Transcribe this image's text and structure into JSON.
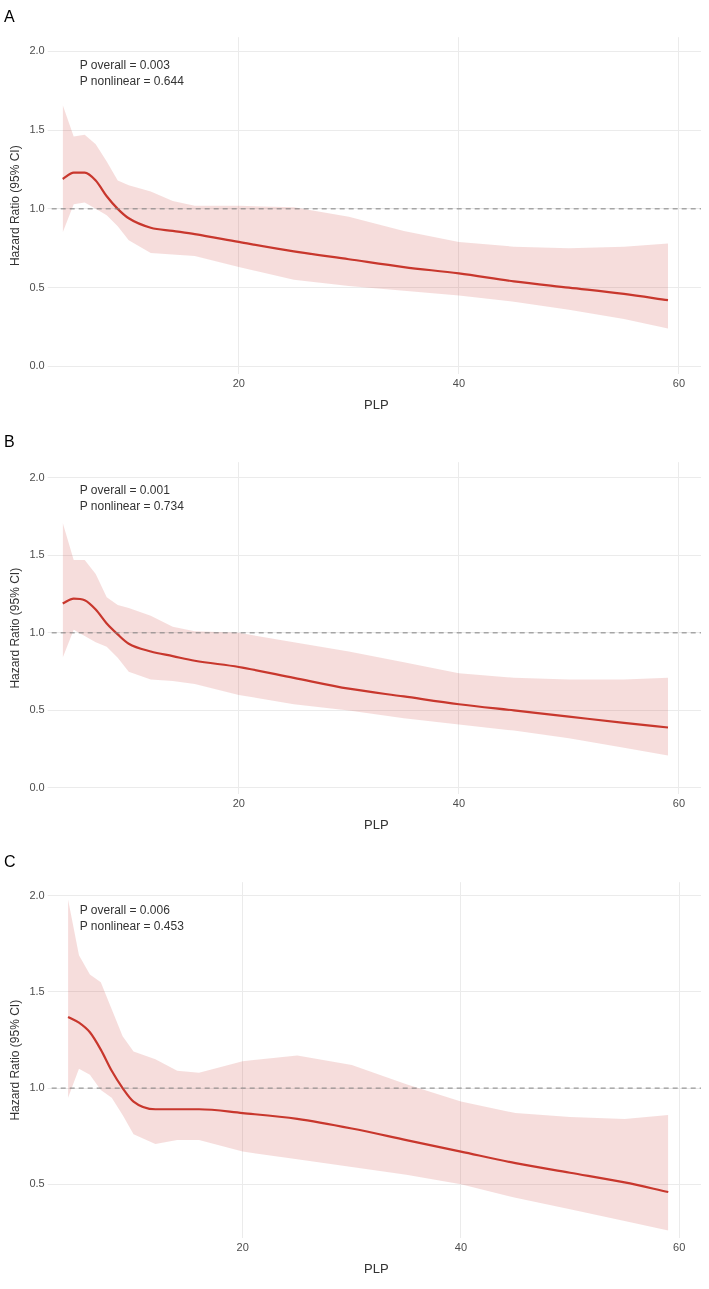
{
  "chart_data": [
    {
      "type": "line",
      "title": "A",
      "xlabel": "PLP",
      "ylabel": "Hazard Ratio (95% CI)",
      "x": [
        4,
        5,
        6,
        7,
        8,
        9,
        10,
        12,
        14,
        16,
        20,
        25,
        30,
        35,
        40,
        45,
        50,
        55,
        59
      ],
      "series": [
        {
          "color": "#c8372d",
          "values": [
            1.19,
            1.23,
            1.23,
            1.18,
            1.08,
            1.0,
            0.94,
            0.88,
            0.86,
            0.84,
            0.79,
            0.73,
            0.68,
            0.63,
            0.59,
            0.54,
            0.5,
            0.46,
            0.42
          ],
          "lower": [
            0.85,
            1.03,
            1.04,
            1.0,
            0.96,
            0.89,
            0.8,
            0.72,
            0.71,
            0.7,
            0.63,
            0.55,
            0.51,
            0.48,
            0.45,
            0.41,
            0.36,
            0.3,
            0.24
          ],
          "upper": [
            1.66,
            1.46,
            1.47,
            1.41,
            1.3,
            1.18,
            1.15,
            1.11,
            1.05,
            1.02,
            1.02,
            1.01,
            0.95,
            0.86,
            0.79,
            0.76,
            0.75,
            0.76,
            0.78
          ]
        }
      ],
      "xlim": [
        3,
        62
      ],
      "ylim": [
        -0.05,
        2.09
      ],
      "xticks": [
        20,
        40,
        60
      ],
      "yticks": [
        {
          "value": 0,
          "label": "0.0"
        },
        {
          "value": 0.5,
          "label": "0.5"
        },
        {
          "value": 1,
          "label": "1.0"
        },
        {
          "value": 1.5,
          "label": "1.5"
        },
        {
          "value": 2,
          "label": "2.0"
        }
      ],
      "ref_lines": [
        {
          "axis": "y",
          "value": 1,
          "color": "#808080",
          "line_style": "dashed"
        }
      ],
      "annotations": [
        "P overall = 0.003",
        "P nonlinear = 0.644"
      ],
      "grid": true,
      "line_style": "solid",
      "marker": "none"
    },
    {
      "type": "line",
      "title": "B",
      "xlabel": "PLP",
      "ylabel": "Hazard Ratio (95% CI)",
      "x": [
        4,
        5,
        6,
        7,
        8,
        9,
        10,
        12,
        14,
        16,
        20,
        25,
        30,
        35,
        40,
        45,
        50,
        55,
        59
      ],
      "series": [
        {
          "color": "#c8372d",
          "values": [
            1.19,
            1.22,
            1.21,
            1.15,
            1.06,
            0.99,
            0.93,
            0.88,
            0.85,
            0.82,
            0.78,
            0.71,
            0.64,
            0.59,
            0.54,
            0.5,
            0.46,
            0.42,
            0.39
          ],
          "lower": [
            0.84,
            1.02,
            0.98,
            0.94,
            0.91,
            0.84,
            0.75,
            0.7,
            0.69,
            0.67,
            0.6,
            0.54,
            0.5,
            0.45,
            0.41,
            0.37,
            0.32,
            0.26,
            0.21
          ],
          "upper": [
            1.71,
            1.47,
            1.47,
            1.38,
            1.23,
            1.18,
            1.16,
            1.11,
            1.04,
            1.01,
            1.0,
            0.94,
            0.88,
            0.81,
            0.74,
            0.71,
            0.7,
            0.7,
            0.71
          ]
        }
      ],
      "xlim": [
        3,
        62
      ],
      "ylim": [
        -0.04,
        2.1
      ],
      "xticks": [
        20,
        40,
        60
      ],
      "yticks": [
        {
          "value": 0,
          "label": "0.0"
        },
        {
          "value": 0.5,
          "label": "0.5"
        },
        {
          "value": 1,
          "label": "1.0"
        },
        {
          "value": 1.5,
          "label": "1.5"
        },
        {
          "value": 2,
          "label": "2.0"
        }
      ],
      "ref_lines": [
        {
          "axis": "y",
          "value": 1,
          "color": "#808080",
          "line_style": "dashed"
        }
      ],
      "annotations": [
        "P overall = 0.001",
        "P nonlinear = 0.734"
      ],
      "grid": true,
      "line_style": "solid",
      "marker": "none"
    },
    {
      "type": "line",
      "title": "C",
      "xlabel": "PLP",
      "ylabel": "Hazard Ratio (95% CI)",
      "x": [
        4,
        5,
        6,
        7,
        8,
        9,
        10,
        12,
        14,
        16,
        20,
        25,
        30,
        35,
        40,
        45,
        50,
        55,
        59
      ],
      "series": [
        {
          "color": "#c8372d",
          "values": [
            1.37,
            1.34,
            1.29,
            1.2,
            1.09,
            1.0,
            0.93,
            0.89,
            0.89,
            0.89,
            0.87,
            0.84,
            0.79,
            0.73,
            0.67,
            0.61,
            0.56,
            0.51,
            0.46
          ],
          "lower": [
            0.95,
            1.1,
            1.07,
            0.99,
            0.95,
            0.86,
            0.76,
            0.71,
            0.73,
            0.73,
            0.67,
            0.63,
            0.59,
            0.55,
            0.5,
            0.43,
            0.37,
            0.31,
            0.26
          ],
          "upper": [
            1.98,
            1.69,
            1.59,
            1.55,
            1.41,
            1.27,
            1.19,
            1.15,
            1.09,
            1.08,
            1.14,
            1.17,
            1.12,
            1.02,
            0.93,
            0.87,
            0.85,
            0.84,
            0.86
          ]
        }
      ],
      "xlim": [
        2.5,
        62
      ],
      "ylim": [
        0.22,
        2.07
      ],
      "xticks": [
        20,
        40,
        60
      ],
      "yticks": [
        {
          "value": 0.5,
          "label": "0.5"
        },
        {
          "value": 1,
          "label": "1.0"
        },
        {
          "value": 1.5,
          "label": "1.5"
        },
        {
          "value": 2,
          "label": "2.0"
        }
      ],
      "ref_lines": [
        {
          "axis": "y",
          "value": 1,
          "color": "#808080",
          "line_style": "dashed"
        }
      ],
      "annotations": [
        "P overall = 0.006",
        "P nonlinear = 0.453"
      ],
      "grid": true,
      "line_style": "solid",
      "marker": "none"
    }
  ]
}
